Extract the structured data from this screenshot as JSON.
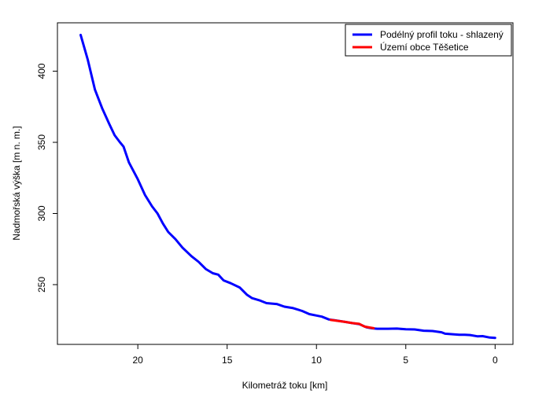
{
  "chart_data": {
    "type": "line",
    "xlabel": "Kilometráž toku [km]",
    "ylabel": "Nadmořská výška [m n. m.]",
    "xlim": [
      24.5,
      -1
    ],
    "ylim": [
      208,
      434
    ],
    "x_ticks": [
      20,
      15,
      10,
      5,
      0
    ],
    "y_ticks": [
      250,
      300,
      350,
      400
    ],
    "x_tick_labels": [
      "20",
      "15",
      "10",
      "5",
      "0"
    ],
    "y_tick_labels": [
      "250",
      "300",
      "350",
      "400"
    ],
    "legend_position": "top-right",
    "legend": [
      "Podélný profil toku  - shlazený",
      "Území obce Těšetice"
    ],
    "series": [
      {
        "name": "Podélný profil toku  - shlazený",
        "color": "#0000ff",
        "points": [
          [
            23.2,
            425.5
          ],
          [
            22.8,
            408
          ],
          [
            22.4,
            387
          ],
          [
            22.0,
            374
          ],
          [
            21.6,
            363
          ],
          [
            21.3,
            355
          ],
          [
            21.0,
            350
          ],
          [
            20.8,
            347
          ],
          [
            20.5,
            336
          ],
          [
            20.0,
            324
          ],
          [
            19.6,
            313
          ],
          [
            19.2,
            305
          ],
          [
            18.9,
            300
          ],
          [
            18.6,
            293
          ],
          [
            18.3,
            287
          ],
          [
            17.9,
            282
          ],
          [
            17.5,
            276
          ],
          [
            17.0,
            270
          ],
          [
            16.6,
            266
          ],
          [
            16.2,
            261
          ],
          [
            15.8,
            258
          ],
          [
            15.5,
            257
          ],
          [
            15.2,
            253
          ],
          [
            14.8,
            251
          ],
          [
            14.3,
            248
          ],
          [
            13.9,
            243
          ],
          [
            13.6,
            240.5
          ],
          [
            13.2,
            239
          ],
          [
            12.8,
            237
          ],
          [
            12.2,
            236.3
          ],
          [
            11.8,
            234.5
          ],
          [
            11.3,
            233.5
          ],
          [
            10.8,
            231.5
          ],
          [
            10.4,
            229.3
          ],
          [
            10.0,
            228.3
          ],
          [
            9.7,
            227.5
          ],
          [
            9.3,
            225.5
          ],
          [
            9.0,
            225
          ],
          [
            8.5,
            224
          ],
          [
            8.0,
            223
          ],
          [
            7.6,
            222.2
          ],
          [
            7.2,
            220
          ],
          [
            6.9,
            219.3
          ],
          [
            6.6,
            219
          ],
          [
            6.0,
            219
          ],
          [
            5.5,
            219.1
          ],
          [
            5.0,
            218.6
          ],
          [
            4.5,
            218.5
          ],
          [
            4.0,
            217.6
          ],
          [
            3.5,
            217.4
          ],
          [
            3.0,
            216.5
          ],
          [
            2.8,
            215.5
          ],
          [
            2.3,
            215
          ],
          [
            2.0,
            214.8
          ],
          [
            1.7,
            214.8
          ],
          [
            1.4,
            214.6
          ],
          [
            1.0,
            213.7
          ],
          [
            0.7,
            213.8
          ],
          [
            0.3,
            212.8
          ],
          [
            0.0,
            212.6
          ]
        ]
      },
      {
        "name": "Území obce Těšetice",
        "color": "#ff0000",
        "points": [
          [
            9.2,
            225.2
          ],
          [
            8.8,
            224.5
          ],
          [
            8.4,
            223.8
          ],
          [
            8.0,
            223
          ],
          [
            7.6,
            222.4
          ],
          [
            7.3,
            220.5
          ],
          [
            7.0,
            219.8
          ],
          [
            6.8,
            219.4
          ]
        ]
      }
    ]
  }
}
